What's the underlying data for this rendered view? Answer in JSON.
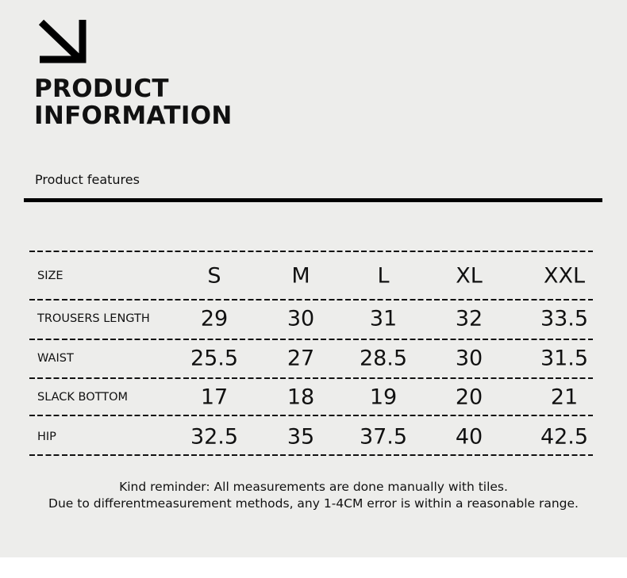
{
  "header": {
    "icon": "arrow-down-right-icon",
    "title_line1": "PRODUCT",
    "title_line2": "INFORMATION",
    "subtitle": "Product features"
  },
  "size_table": {
    "header_label": "SIZE",
    "sizes": [
      "S",
      "M",
      "L",
      "XL",
      "XXL"
    ],
    "rows": [
      {
        "label": "TROUSERS LENGTH",
        "values": [
          "29",
          "30",
          "31",
          "32",
          "33.5"
        ]
      },
      {
        "label": "WAIST",
        "values": [
          "25.5",
          "27",
          "28.5",
          "30",
          "31.5"
        ]
      },
      {
        "label": "SLACK BOTTOM",
        "values": [
          "17",
          "18",
          "19",
          "20",
          "21"
        ]
      },
      {
        "label": "HIP",
        "values": [
          "32.5",
          "35",
          "37.5",
          "40",
          "42.5"
        ]
      }
    ]
  },
  "note": {
    "line1": "Kind reminder: All measurements are done manually with tiles.",
    "line2": "Due to differentmeasurement methods, any 1-4CM error is within a reasonable range."
  },
  "colors": {
    "background": "#ededeb",
    "text": "#111111"
  }
}
